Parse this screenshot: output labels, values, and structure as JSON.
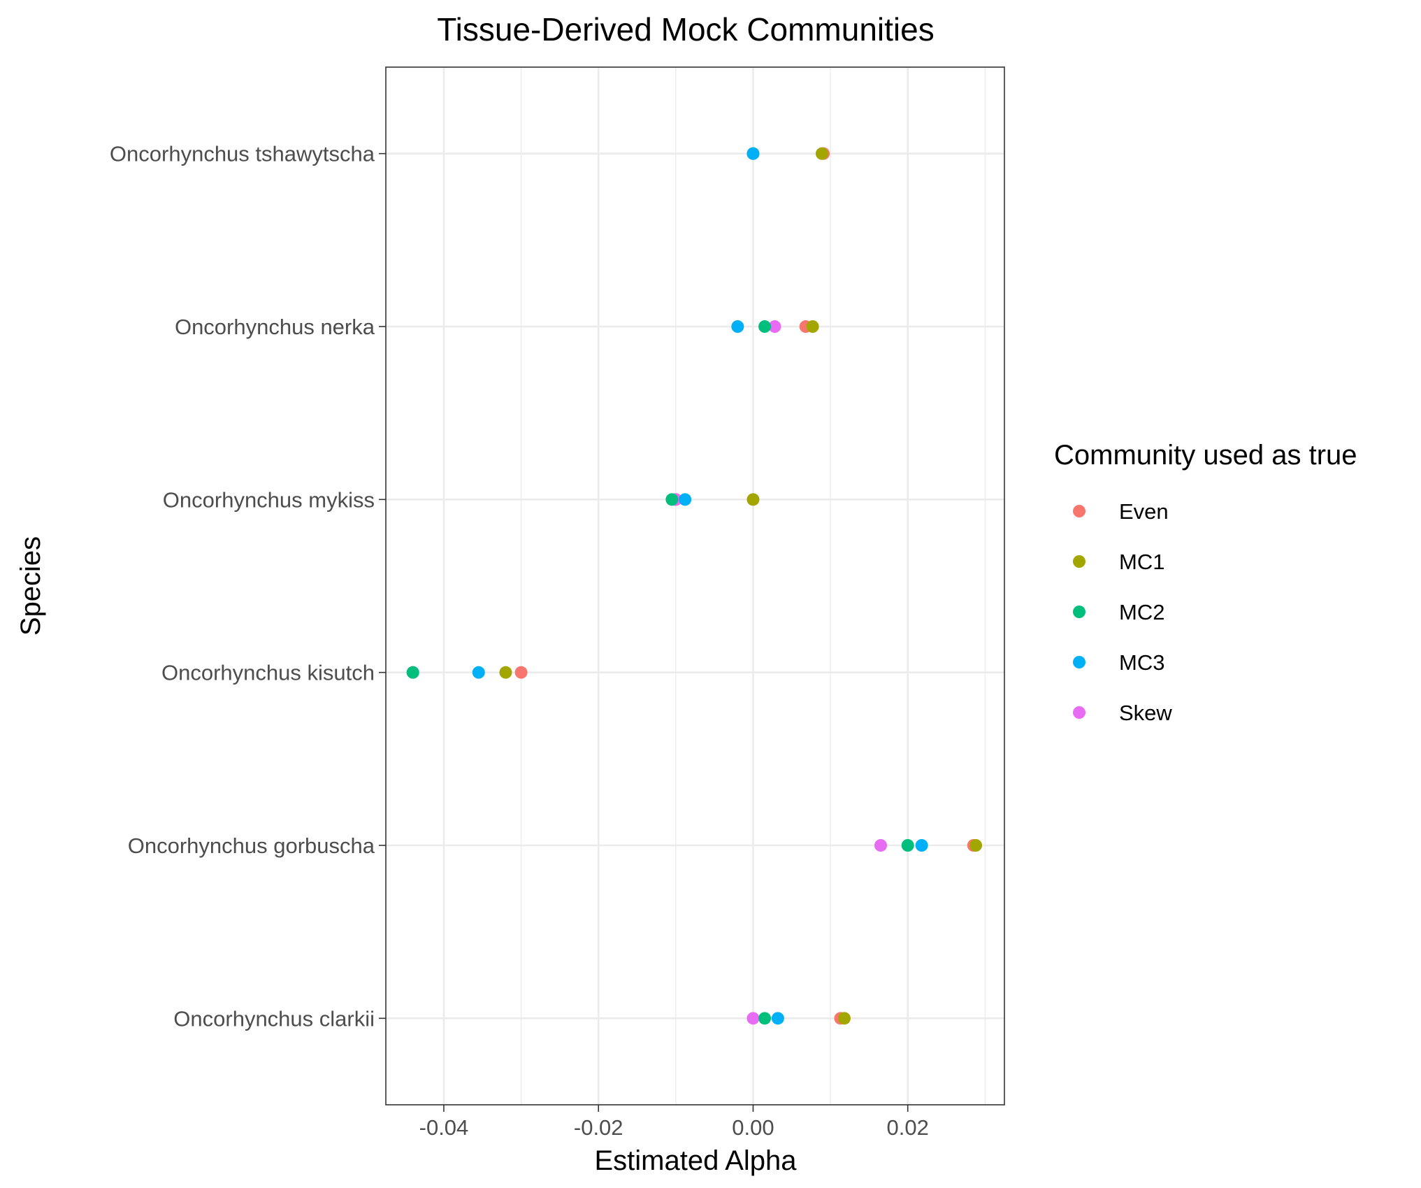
{
  "chart_data": {
    "type": "scatter",
    "title": "Tissue-Derived Mock Communities",
    "xlabel": "Estimated Alpha",
    "ylabel": "Species",
    "xlim": [
      -0.0475,
      0.0325
    ],
    "x_ticks": [
      -0.04,
      -0.02,
      0.0,
      0.02
    ],
    "x_tick_labels": [
      "-0.04",
      "-0.02",
      "0.00",
      "0.02"
    ],
    "categories": [
      "Oncorhynchus clarkii",
      "Oncorhynchus gorbuscha",
      "Oncorhynchus kisutch",
      "Oncorhynchus mykiss",
      "Oncorhynchus nerka",
      "Oncorhynchus tshawytscha"
    ],
    "grid": true,
    "legend": {
      "title": "Community used as true",
      "position": "right"
    },
    "series": [
      {
        "name": "Even",
        "color": "#F8766D",
        "values": [
          0.0113,
          0.0285,
          -0.03,
          -0.01,
          0.0068,
          0.0091
        ]
      },
      {
        "name": "Skew",
        "color": "#E76BF3",
        "values": [
          0.0,
          0.0165,
          -0.044,
          -0.01,
          0.0028,
          0.0
        ]
      },
      {
        "name": "MC2",
        "color": "#00BF7D",
        "values": [
          0.0015,
          0.02,
          -0.044,
          -0.0105,
          0.0015,
          0.0
        ]
      },
      {
        "name": "MC3",
        "color": "#00B0F6",
        "values": [
          0.0032,
          0.0218,
          -0.0355,
          -0.0088,
          -0.002,
          0.0
        ]
      },
      {
        "name": "MC1",
        "color": "#A3A500",
        "values": [
          0.0118,
          0.0288,
          -0.032,
          0.0,
          0.0077,
          0.0089
        ]
      }
    ]
  }
}
